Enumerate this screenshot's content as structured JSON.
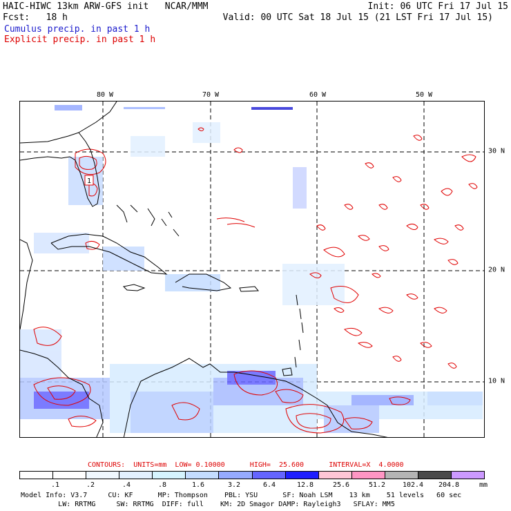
{
  "header": {
    "line1_left": "HAIC-HIWC 13km ARW-GFS init   NCAR/MMM",
    "line1_right": "Init: 06 UTC Fri 17 Jul 15",
    "line2_left": "Fcst:   18 h",
    "line2_right": "Valid: 00 UTC Sat 18 Jul 15 (21 LST Fri 17 Jul 15)",
    "legend_cumulus": "Cumulus precip. in past 1 h",
    "legend_explicit": "Explicit precip. in past 1 h"
  },
  "map": {
    "lon_labels": [
      "80 W",
      "70 W",
      "60 W",
      "50 W"
    ],
    "lat_labels": [
      "30 N",
      "20 N",
      "10 N"
    ],
    "point_label": "1",
    "colors": {
      "cumulus": "#4a64ff",
      "explicit": "#e00000",
      "coast": "#000000",
      "grid": "#000000"
    }
  },
  "contours": {
    "label": "CONTOURS:  UNITS=mm  LOW= 0.10000      HIGH=  25.600      INTERVAL=X  4.0000"
  },
  "colorbar": {
    "labels": [
      ".1",
      ".2",
      ".4",
      ".8",
      "1.6",
      "3.2",
      "6.4",
      "12.8",
      "25.6",
      "51.2",
      "102.4",
      "204.8"
    ],
    "units": "mm",
    "colors": [
      "#ffffff",
      "#ffffff",
      "#f0f8ff",
      "#e2f0ff",
      "#d6f4ff",
      "#c4dcff",
      "#96aaff",
      "#6464ff",
      "#1e1eff",
      "#ffc6d6",
      "#ff96c4",
      "#b4b4b4",
      "#4a4a4a",
      "#cc99ff"
    ]
  },
  "footer": {
    "line1": "Model Info: V3.7     CU: KF      MP: Thompson    PBL: YSU      SF: Noah LSM    13 km    51 levels   60 sec",
    "line2": "         LW: RRTMG     SW: RRTMG  DIFF: full    KM: 2D Smagor DAMP: Rayleigh3   SFLAY: MM5"
  }
}
